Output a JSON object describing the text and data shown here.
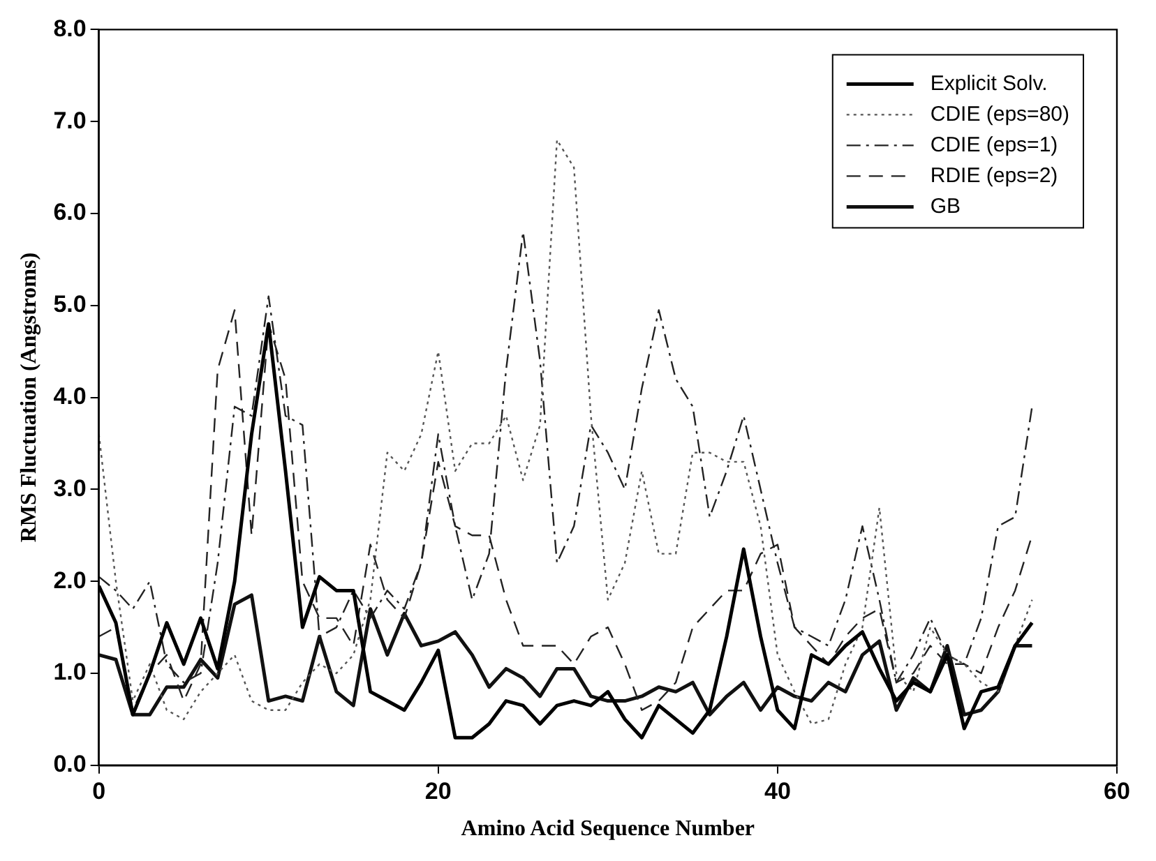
{
  "chart_data": {
    "type": "line",
    "xlabel": "Amino Acid Sequence Number",
    "ylabel": "RMS Fluctuation (Angstroms)",
    "x": [
      0,
      1,
      2,
      3,
      4,
      5,
      6,
      7,
      8,
      9,
      10,
      11,
      12,
      13,
      14,
      15,
      16,
      17,
      18,
      19,
      20,
      21,
      22,
      23,
      24,
      25,
      26,
      27,
      28,
      29,
      30,
      31,
      32,
      33,
      34,
      35,
      36,
      37,
      38,
      39,
      40,
      41,
      42,
      43,
      44,
      45,
      46,
      47,
      48,
      49,
      50,
      51,
      52,
      53,
      54,
      55
    ],
    "xlim": [
      0,
      60
    ],
    "xticks": [
      0,
      20,
      40,
      60
    ],
    "ylim": [
      0,
      8
    ],
    "yticks": [
      {
        "value": 0,
        "label": "0.0"
      },
      {
        "value": 1,
        "label": "1.0"
      },
      {
        "value": 2,
        "label": "2.0"
      },
      {
        "value": 3,
        "label": "3.0"
      },
      {
        "value": 4,
        "label": "4.0"
      },
      {
        "value": 5,
        "label": "5.0"
      },
      {
        "value": 6,
        "label": "6.0"
      },
      {
        "value": 7,
        "label": "7.0"
      },
      {
        "value": 8,
        "label": "8.0"
      }
    ],
    "grid": false,
    "legend": "top right",
    "marker": "none",
    "series": [
      {
        "name": "Explicit Solv.",
        "color": "#000000",
        "line_style": "solid",
        "values": [
          1.95,
          1.55,
          0.55,
          1.0,
          1.55,
          1.1,
          1.6,
          1.05,
          2.0,
          3.6,
          4.8,
          3.2,
          1.5,
          2.05,
          1.9,
          1.9,
          0.8,
          0.7,
          0.6,
          0.9,
          1.25,
          0.3,
          0.3,
          0.45,
          0.7,
          0.65,
          0.45,
          0.65,
          0.7,
          0.65,
          0.8,
          0.5,
          0.3,
          0.65,
          0.5,
          0.35,
          0.6,
          1.4,
          2.35,
          1.4,
          0.6,
          0.4,
          1.2,
          1.1,
          1.3,
          1.45,
          1.05,
          0.7,
          0.9,
          0.8,
          1.2,
          0.4,
          0.8,
          0.85,
          1.3,
          1.55
        ]
      },
      {
        "name": "CDIE (eps=80)",
        "color": "#555555",
        "line_style": "dotted",
        "values": [
          3.6,
          2.0,
          0.7,
          1.1,
          0.6,
          0.5,
          0.8,
          1.0,
          1.2,
          0.7,
          0.6,
          0.6,
          0.9,
          1.1,
          1.0,
          1.2,
          1.8,
          3.4,
          3.2,
          3.6,
          4.5,
          3.2,
          3.5,
          3.5,
          3.8,
          3.1,
          3.7,
          6.8,
          6.5,
          3.8,
          1.8,
          2.2,
          3.2,
          2.3,
          2.3,
          3.4,
          3.4,
          3.3,
          3.3,
          2.6,
          1.2,
          0.8,
          0.45,
          0.5,
          1.1,
          1.5,
          2.8,
          1.0,
          0.8,
          1.5,
          1.2,
          1.1,
          0.9,
          0.8,
          1.3,
          1.8
        ]
      },
      {
        "name": "CDIE (eps=1)",
        "color": "#222222",
        "line_style": "dashdot",
        "values": [
          2.05,
          1.9,
          1.7,
          2.0,
          1.1,
          0.9,
          1.0,
          2.2,
          3.9,
          3.8,
          5.1,
          3.8,
          3.7,
          1.4,
          1.5,
          1.9,
          1.6,
          1.9,
          1.7,
          2.2,
          3.6,
          2.6,
          1.8,
          2.3,
          4.3,
          5.8,
          4.4,
          2.2,
          2.6,
          3.7,
          3.4,
          3.0,
          4.1,
          4.95,
          4.2,
          3.9,
          2.7,
          3.2,
          3.8,
          3.0,
          2.2,
          1.5,
          1.4,
          1.3,
          1.8,
          2.6,
          1.8,
          0.9,
          1.2,
          1.6,
          1.2,
          1.1,
          1.6,
          2.6,
          2.7,
          3.9
        ]
      },
      {
        "name": "RDIE (eps=2)",
        "color": "#222222",
        "line_style": "dashed",
        "values": [
          1.4,
          1.5,
          0.6,
          1.0,
          1.2,
          0.7,
          1.1,
          4.3,
          4.95,
          2.5,
          4.8,
          4.2,
          2.0,
          1.6,
          1.6,
          1.3,
          2.4,
          1.8,
          1.6,
          2.2,
          3.3,
          2.6,
          2.5,
          2.5,
          1.8,
          1.3,
          1.3,
          1.3,
          1.1,
          1.4,
          1.5,
          1.1,
          0.6,
          0.7,
          0.9,
          1.5,
          1.7,
          1.9,
          1.9,
          2.3,
          2.4,
          1.5,
          1.3,
          1.1,
          1.4,
          1.6,
          1.7,
          0.9,
          1.0,
          1.3,
          1.1,
          1.1,
          1.0,
          1.5,
          1.9,
          2.5
        ]
      },
      {
        "name": "GB",
        "color": "#111111",
        "line_style": "solid",
        "values": [
          1.2,
          1.15,
          0.55,
          0.55,
          0.85,
          0.85,
          1.15,
          0.95,
          1.75,
          1.85,
          0.7,
          0.75,
          0.7,
          1.4,
          0.8,
          0.65,
          1.7,
          1.2,
          1.65,
          1.3,
          1.35,
          1.45,
          1.2,
          0.85,
          1.05,
          0.95,
          0.75,
          1.05,
          1.05,
          0.75,
          0.7,
          0.7,
          0.75,
          0.85,
          0.8,
          0.9,
          0.55,
          0.75,
          0.9,
          0.6,
          0.85,
          0.75,
          0.7,
          0.9,
          0.8,
          1.2,
          1.35,
          0.6,
          0.95,
          0.8,
          1.3,
          0.55,
          0.6,
          0.8,
          1.3,
          1.3
        ]
      }
    ]
  }
}
